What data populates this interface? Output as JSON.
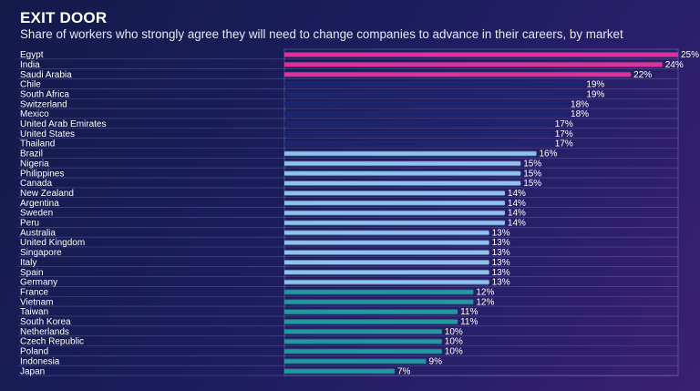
{
  "chart_data": {
    "type": "bar",
    "orientation": "horizontal",
    "title": "EXIT DOOR",
    "subtitle": "Share of workers who strongly agree they will need to change companies to advance in their careers, by market",
    "xlabel": "",
    "ylabel": "",
    "xlim": [
      0,
      25
    ],
    "value_suffix": "%",
    "grid": true,
    "categories": [
      "Egypt",
      "India",
      "Saudi Arabia",
      "Chile",
      "South Africa",
      "Switzerland",
      "Mexico",
      "United Arab Emirates",
      "United States",
      "Thailand",
      "Brazil",
      "Nigeria",
      "Philippines",
      "Canada",
      "New Zealand",
      "Argentina",
      "Sweden",
      "Peru",
      "Australia",
      "United Kingdom",
      "Singapore",
      "Italy",
      "Spain",
      "Germany",
      "France",
      "Vietnam",
      "Taiwan",
      "South Korea",
      "Netherlands",
      "Czech Republic",
      "Poland",
      "Indonesia",
      "Japan"
    ],
    "values": [
      25,
      24,
      22,
      19,
      19,
      18,
      18,
      17,
      17,
      17,
      16,
      15,
      15,
      15,
      14,
      14,
      14,
      14,
      13,
      13,
      13,
      13,
      13,
      13,
      12,
      12,
      11,
      11,
      10,
      10,
      10,
      9,
      7
    ],
    "color_groups": [
      {
        "from": 0,
        "to": 2,
        "color": "#e0309a",
        "glow": "#ff66c4"
      },
      {
        "from": 3,
        "to": 9,
        "color": "#1c2470",
        "glow": "#39408a"
      },
      {
        "from": 10,
        "to": 23,
        "color": "#8cc4ee",
        "glow": "#c8e6ff"
      },
      {
        "from": 24,
        "to": 32,
        "color": "#1f9a9e",
        "glow": "#5fd6d6"
      }
    ]
  }
}
